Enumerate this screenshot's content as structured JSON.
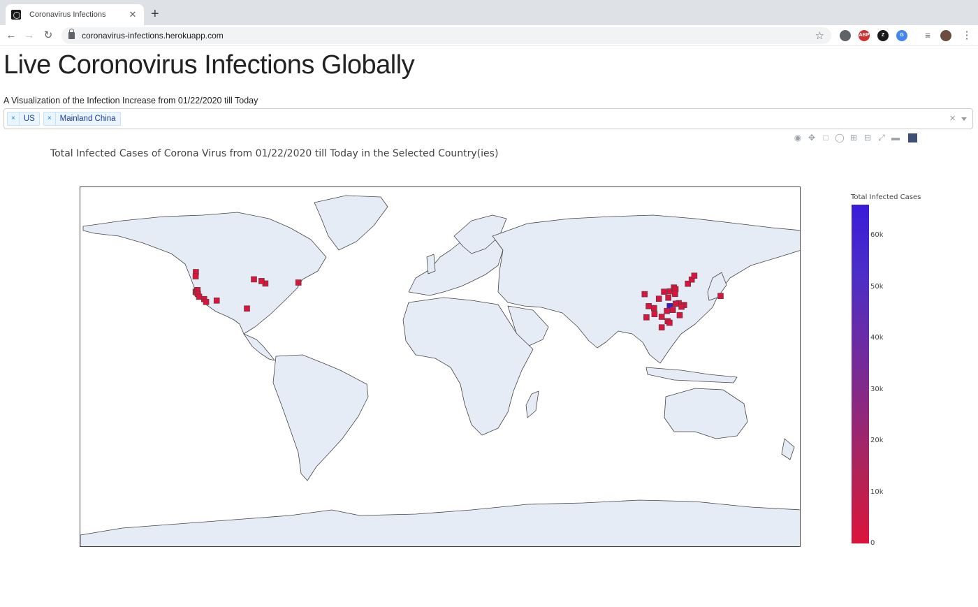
{
  "browser": {
    "tab_title": "Coronavirus Infections",
    "tab_close": "✕",
    "new_tab": "+",
    "url": "coronavirus-infections.herokuapp.com",
    "extensions": [
      {
        "name": "circle-extension-icon",
        "label": "",
        "color": "#5f6368"
      },
      {
        "name": "adblock-plus-icon",
        "label": "ABP",
        "color": "#d32f2f"
      },
      {
        "name": "zotero-icon",
        "label": "Z",
        "color": "#1a1a1a"
      },
      {
        "name": "translate-icon",
        "label": "G",
        "color": "#4285f4"
      }
    ]
  },
  "page": {
    "title": "Live Coronovirus Infections Globally",
    "subtitle": "A Visualization of the Infection Increase from 01/22/2020 till Today"
  },
  "dropdown": {
    "selected": [
      "US",
      "Mainland China"
    ],
    "remove_symbol": "×",
    "clear_symbol": "×"
  },
  "modebar": {
    "icons": [
      "camera-icon",
      "pan-icon",
      "box-select-icon",
      "lasso-select-icon",
      "zoom-in-icon",
      "zoom-out-icon",
      "reset-icon",
      "hover-icon",
      "plotly-logo-icon"
    ]
  },
  "chart_data": {
    "type": "scatter",
    "title": "Total Infected Cases of Corona Virus from 01/22/2020 till Today in the Selected Country(ies)",
    "projection": "equirectangular",
    "land_color": "#e5ecf6",
    "marker_symbol": "square",
    "colorscale": [
      [
        "#dc143c",
        0
      ],
      [
        "#3a1bd9",
        66000
      ]
    ],
    "colorbar": {
      "title": "Total Infected Cases",
      "range": [
        0,
        66000
      ],
      "ticks": [
        0,
        10000,
        20000,
        30000,
        40000,
        50000,
        60000
      ],
      "tick_labels": [
        "0",
        "10k",
        "20k",
        "30k",
        "40k",
        "50k",
        "60k"
      ]
    },
    "points": [
      {
        "lon": -122.3,
        "lat": 47.6,
        "cases": 1
      },
      {
        "lon": -122.4,
        "lat": 45.5,
        "cases": 1
      },
      {
        "lon": -122.4,
        "lat": 37.8,
        "cases": 2
      },
      {
        "lon": -121.9,
        "lat": 37.3,
        "cases": 2
      },
      {
        "lon": -121.5,
        "lat": 38.6,
        "cases": 1
      },
      {
        "lon": -121.3,
        "lat": 36.7,
        "cases": 1
      },
      {
        "lon": -120.7,
        "lat": 35.3,
        "cases": 1
      },
      {
        "lon": -118.2,
        "lat": 34.1,
        "cases": 1
      },
      {
        "lon": -117.2,
        "lat": 32.7,
        "cases": 2
      },
      {
        "lon": -111.9,
        "lat": 33.4,
        "cases": 1
      },
      {
        "lon": -96.8,
        "lat": 29.4,
        "cases": 2
      },
      {
        "lon": -93.3,
        "lat": 44.0,
        "cases": 1
      },
      {
        "lon": -87.6,
        "lat": 41.9,
        "cases": 2
      },
      {
        "lon": -89.5,
        "lat": 43.1,
        "cases": 1
      },
      {
        "lon": -71.1,
        "lat": 42.4,
        "cases": 1
      },
      {
        "lon": 101.8,
        "lat": 36.6,
        "cases": 18
      },
      {
        "lon": 103.8,
        "lat": 30.6,
        "cases": 526
      },
      {
        "lon": 108.9,
        "lat": 34.3,
        "cases": 240
      },
      {
        "lon": 111.5,
        "lat": 37.8,
        "cases": 130
      },
      {
        "lon": 114.5,
        "lat": 38.0,
        "cases": 300
      },
      {
        "lon": 116.4,
        "lat": 39.9,
        "cases": 396
      },
      {
        "lon": 117.2,
        "lat": 39.1,
        "cases": 131
      },
      {
        "lon": 113.6,
        "lat": 34.8,
        "cases": 1231
      },
      {
        "lon": 117.0,
        "lat": 36.7,
        "cases": 537
      },
      {
        "lon": 118.8,
        "lat": 32.1,
        "cases": 629
      },
      {
        "lon": 121.5,
        "lat": 31.2,
        "cases": 333
      },
      {
        "lon": 120.2,
        "lat": 30.3,
        "cases": 1167
      },
      {
        "lon": 117.3,
        "lat": 31.8,
        "cases": 984
      },
      {
        "lon": 114.3,
        "lat": 30.6,
        "cases": 65000
      },
      {
        "lon": 112.9,
        "lat": 28.2,
        "cases": 1010
      },
      {
        "lon": 115.9,
        "lat": 28.7,
        "cases": 934
      },
      {
        "lon": 119.3,
        "lat": 26.1,
        "cases": 294
      },
      {
        "lon": 113.3,
        "lat": 23.1,
        "cases": 1347
      },
      {
        "lon": 110.3,
        "lat": 25.3,
        "cases": 252
      },
      {
        "lon": 102.7,
        "lat": 25.0,
        "cases": 174
      },
      {
        "lon": 106.7,
        "lat": 26.6,
        "cases": 146
      },
      {
        "lon": 106.5,
        "lat": 29.6,
        "cases": 576
      },
      {
        "lon": 110.3,
        "lat": 20.0,
        "cases": 168
      },
      {
        "lon": 123.4,
        "lat": 41.8,
        "cases": 125
      },
      {
        "lon": 125.3,
        "lat": 43.9,
        "cases": 93
      },
      {
        "lon": 126.6,
        "lat": 45.8,
        "cases": 480
      },
      {
        "lon": 114.2,
        "lat": 22.3,
        "cases": 94
      },
      {
        "lon": 139.7,
        "lat": 35.7,
        "cases": 1
      }
    ]
  }
}
